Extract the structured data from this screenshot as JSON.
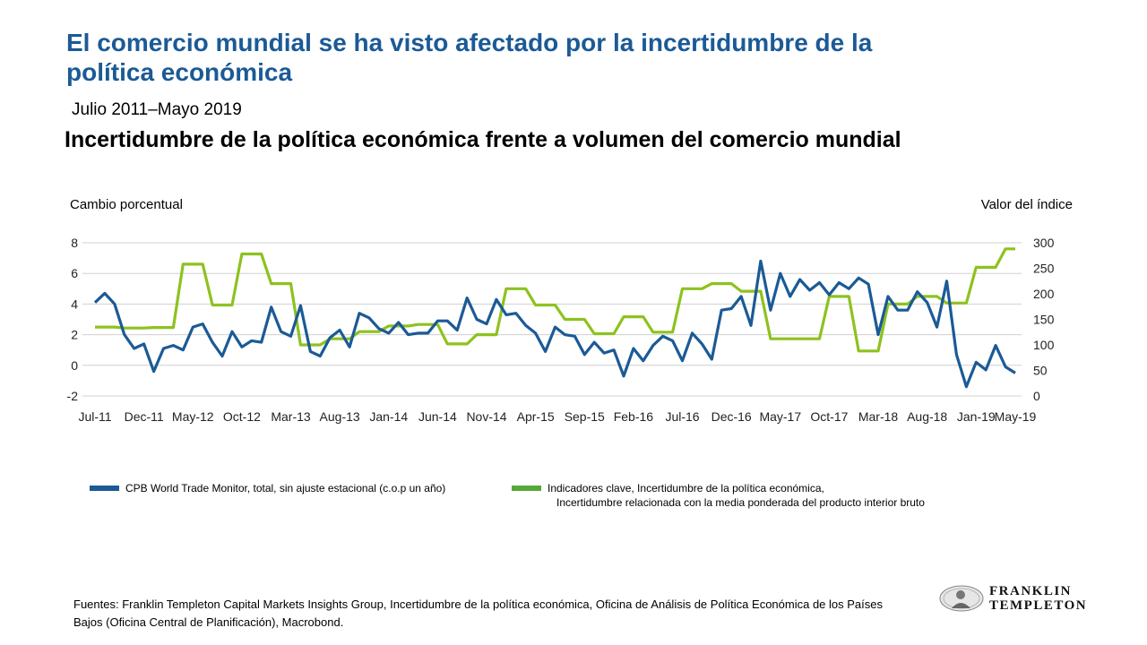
{
  "header": {
    "title": "El comercio mundial se ha visto afectado por la incertidumbre de la política económica",
    "period": "Julio 2011–Mayo 2019",
    "subtitle": "Incertidumbre de la política económica frente a volumen del comercio mundial"
  },
  "colors": {
    "title": "#1B5A96",
    "series_trade": "#1B5A96",
    "series_uncertainty": "#8DC21F",
    "legend_uncertainty_swatch": "#57A838",
    "grid": "#D0D0D0"
  },
  "chart_data": {
    "type": "line",
    "title": "Incertidumbre de la política económica frente a volumen del comercio mundial",
    "ylabel": "Cambio porcentual",
    "y2label": "Valor del índice",
    "xlabel": "",
    "ylim": [
      -2,
      8
    ],
    "yticks": [
      "8",
      "6",
      "4",
      "2",
      "0",
      "-2"
    ],
    "y2lim": [
      0,
      300
    ],
    "y2ticks": [
      "300",
      "250",
      "200",
      "150",
      "100",
      "50",
      "0"
    ],
    "x_tick_labels": [
      "Jul-11",
      "Dec-11",
      "May-12",
      "Oct-12",
      "Mar-13",
      "Aug-13",
      "Jan-14",
      "Jun-14",
      "Nov-14",
      "Apr-15",
      "Sep-15",
      "Feb-16",
      "Jul-16",
      "Dec-16",
      "May-17",
      "Oct-17",
      "Mar-18",
      "Aug-18",
      "Jan-19",
      "May-19"
    ],
    "grid": "horizontal",
    "legend_position": "bottom",
    "frequency": "monthly",
    "start": "Jul-11",
    "end": "May-19",
    "series": [
      {
        "name": "CPB World Trade  Monitor, total, sin ajuste estacional (c.o.p un año)",
        "axis": "left",
        "values": [
          4.1,
          4.7,
          4.0,
          2.0,
          1.1,
          1.4,
          -0.4,
          1.1,
          1.3,
          1.0,
          2.5,
          2.7,
          1.5,
          0.6,
          2.2,
          1.2,
          1.6,
          1.5,
          3.8,
          2.2,
          1.9,
          3.9,
          0.9,
          0.6,
          1.8,
          2.3,
          1.2,
          3.4,
          3.1,
          2.4,
          2.1,
          2.8,
          2.0,
          2.1,
          2.1,
          2.9,
          2.9,
          2.3,
          4.4,
          3.0,
          2.7,
          4.3,
          3.3,
          3.4,
          2.6,
          2.1,
          0.9,
          2.5,
          2.0,
          1.9,
          0.7,
          1.5,
          0.8,
          1.0,
          -0.7,
          1.1,
          0.3,
          1.3,
          1.9,
          1.6,
          0.3,
          2.1,
          1.4,
          0.4,
          3.6,
          3.7,
          4.5,
          2.6,
          6.8,
          3.6,
          6.0,
          4.5,
          5.6,
          4.9,
          5.4,
          4.6,
          5.4,
          5.0,
          5.7,
          5.3,
          2.0,
          4.5,
          3.6,
          3.6,
          4.8,
          4.1,
          2.5,
          5.5,
          0.7,
          -1.4,
          0.2,
          -0.3,
          1.3,
          -0.1,
          -0.5
        ]
      },
      {
        "name": "Indicadores  clave,  Incertidumbre  de la política económica,",
        "name_line2": "Incertidumbre  relacionada  con la media ponderada  del producto interior bruto",
        "axis": "right",
        "values": [
          135,
          135,
          135,
          133,
          133,
          133,
          134,
          134,
          134,
          258,
          258,
          258,
          178,
          178,
          178,
          278,
          278,
          278,
          220,
          220,
          220,
          100,
          100,
          100,
          112,
          112,
          112,
          126,
          126,
          126,
          137,
          137,
          137,
          140,
          140,
          140,
          102,
          102,
          102,
          120,
          120,
          120,
          210,
          210,
          210,
          178,
          178,
          178,
          150,
          150,
          150,
          122,
          122,
          122,
          155,
          155,
          155,
          125,
          125,
          125,
          210,
          210,
          210,
          220,
          220,
          220,
          205,
          205,
          205,
          112,
          112,
          112,
          112,
          112,
          112,
          195,
          195,
          195,
          88,
          88,
          88,
          180,
          180,
          180,
          195,
          195,
          195,
          182,
          182,
          182,
          252,
          252,
          252,
          288,
          288
        ]
      }
    ]
  },
  "legend": {
    "trade_label": "CPB World Trade  Monitor, total, sin ajuste estacional (c.o.p un año)",
    "uncertainty_label_1": "Indicadores  clave,  Incertidumbre  de la política económica,",
    "uncertainty_label_2": "Incertidumbre  relacionada  con la media ponderada  del producto interior bruto"
  },
  "footer": {
    "source": "Fuentes: Franklin Templeton Capital Markets Insights Group, Incertidumbre de la política económica, Oficina de Análisis de Política Económica de los Países Bajos (Oficina Central de Planificación), Macrobond.",
    "logo_line1": "FRANKLIN",
    "logo_line2": "TEMPLETON",
    "logo_icon": "benjamin-franklin-seal-icon"
  }
}
